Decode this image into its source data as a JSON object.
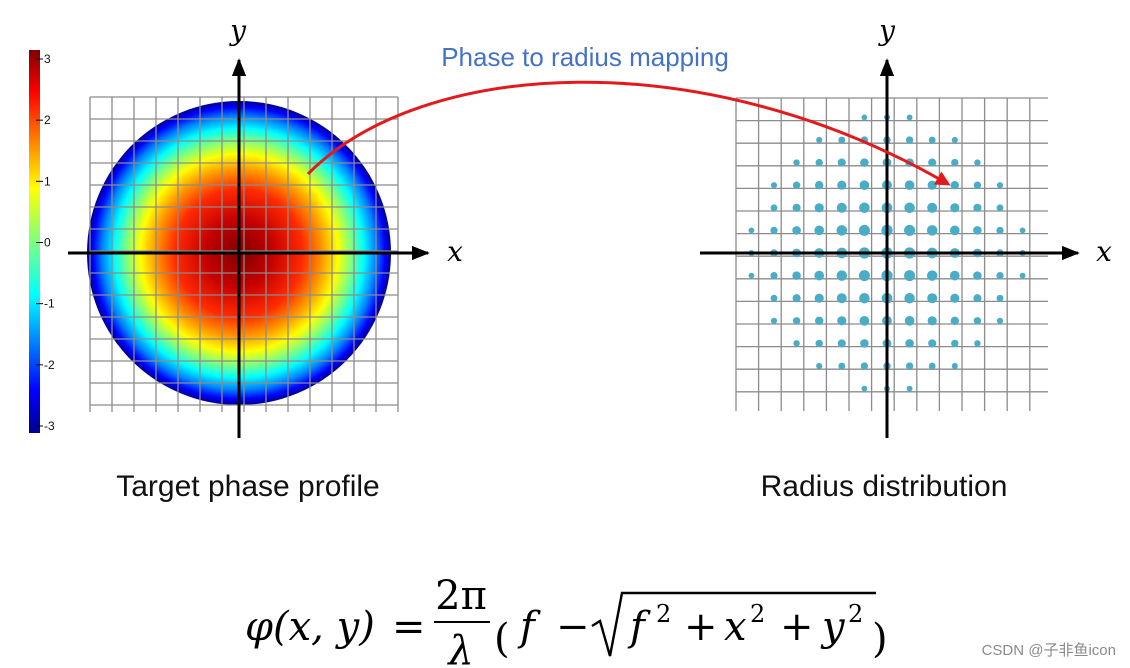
{
  "colorbar": {
    "ticks": [
      "3",
      "2",
      "1",
      "0",
      "-1",
      "-2",
      "-3"
    ],
    "min": -3,
    "max": 3
  },
  "left_panel": {
    "caption": "Target phase profile",
    "x_label": "x",
    "y_label": "y"
  },
  "right_panel": {
    "caption": "Radius distribution",
    "x_label": "x",
    "y_label": "y"
  },
  "mapping_label": "Phase to radius mapping",
  "equation": {
    "lhs": "φ(x, y)",
    "equals": "=",
    "numerator": "2π",
    "denominator": "λ",
    "open_paren": "(",
    "f": "f",
    "minus": "−",
    "radicand_f": "f",
    "exp2": "2",
    "plus": "+",
    "radicand_x": "x",
    "radicand_y": "y",
    "close_paren": ")"
  },
  "watermark": "CSDN @子非鱼icon",
  "colors": {
    "arrow": "#e31a1c",
    "mapping_text": "#4472c4",
    "dot": "#4bacc6",
    "grid": "#8c8c8c"
  }
}
